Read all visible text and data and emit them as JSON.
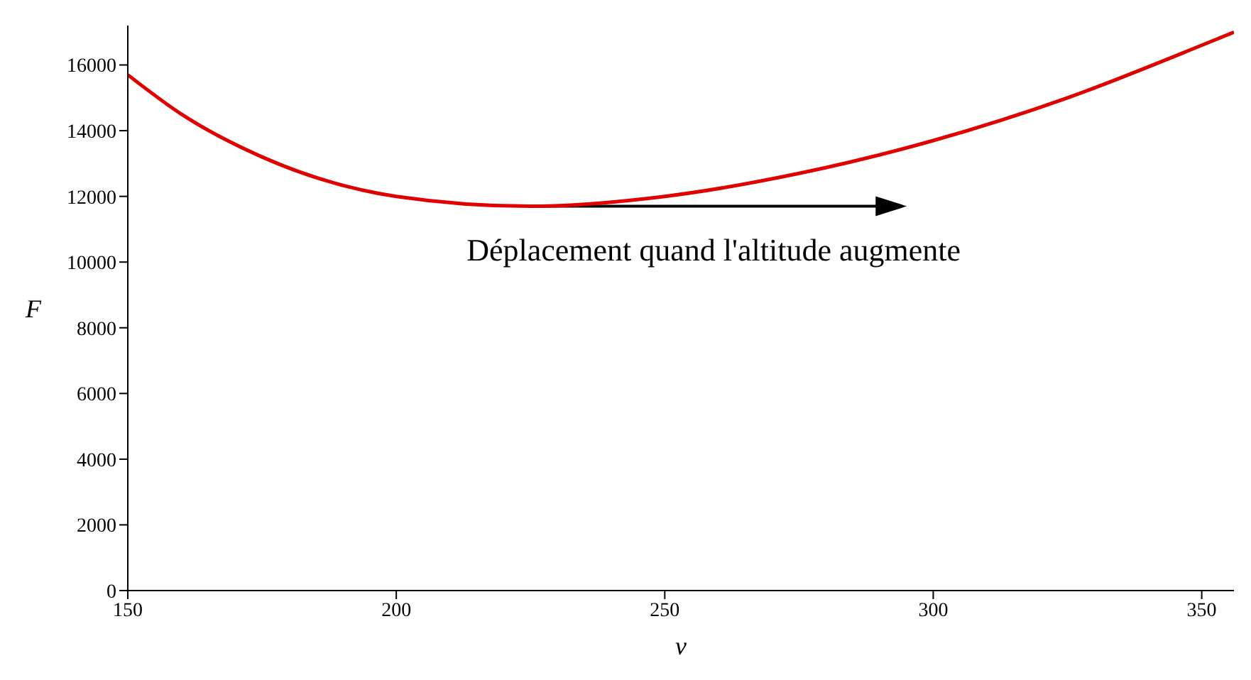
{
  "chart_data": {
    "type": "line",
    "xlabel": "v",
    "ylabel": "F",
    "x": [
      150,
      160,
      175,
      200,
      225,
      250,
      275,
      300,
      325,
      350,
      356
    ],
    "series": [
      {
        "color": "#e00000",
        "values": [
          15700,
          14500,
          13200,
          12000,
          11700,
          12000,
          12700,
          13700,
          15000,
          16600,
          17000
        ]
      }
    ],
    "xlim": [
      150,
      356
    ],
    "xticks": [
      150,
      200,
      250,
      300,
      350
    ],
    "ylim": [
      0,
      17200
    ],
    "yticks": [
      0,
      2000,
      4000,
      6000,
      8000,
      10000,
      12000,
      14000,
      16000
    ],
    "annotations": [
      {
        "text": "Déplacement quand l'altitude augmente",
        "x": 225,
        "y": 11700
      }
    ],
    "marker": "none",
    "line_style": "solid"
  }
}
